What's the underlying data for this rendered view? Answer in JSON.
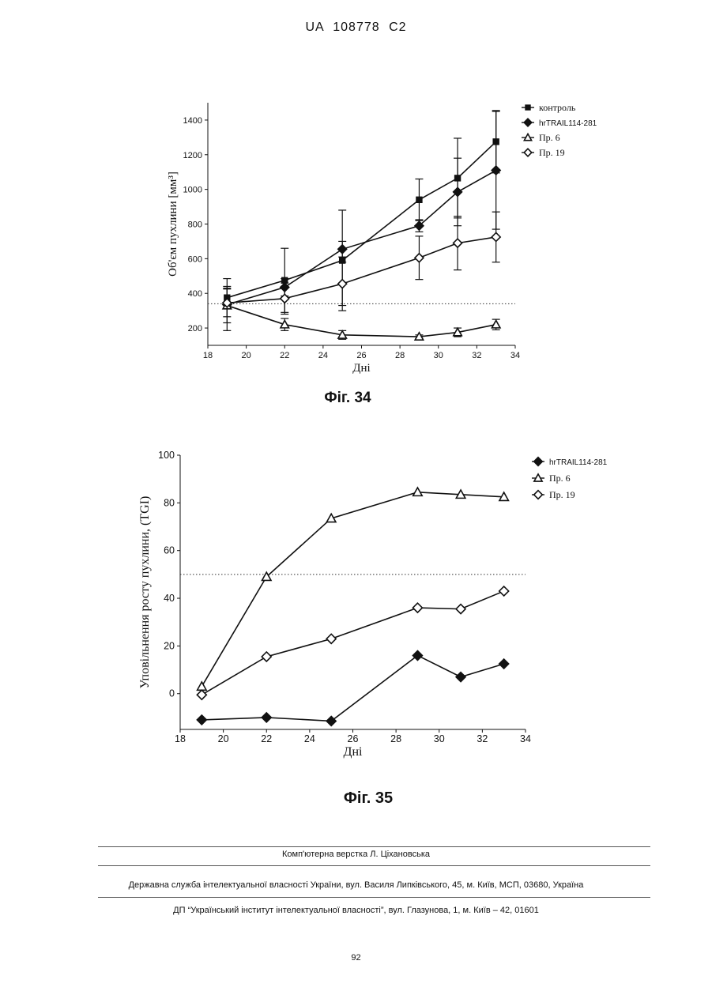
{
  "header": {
    "patent_number": "UA   108778   C2"
  },
  "figures": [
    {
      "caption": "Фіг. 34"
    },
    {
      "caption": "Фіг. 35"
    }
  ],
  "chart_data": [
    {
      "type": "line",
      "xlabel": "Дні",
      "ylabel": "Об'єм пухлини [мм³]",
      "xlim": [
        18,
        34
      ],
      "ylim": [
        100,
        1500
      ],
      "xticks": [
        "18",
        "20",
        "22",
        "24",
        "26",
        "28",
        "30",
        "32",
        "34"
      ],
      "yticks": [
        "200",
        "400",
        "600",
        "800",
        "1000",
        "1200",
        "1400"
      ],
      "reference_line": 340,
      "legend_position": "right",
      "series": [
        {
          "name": "контроль",
          "marker": "square-filled",
          "color": "#111111",
          "x": [
            19,
            22,
            25,
            29,
            31,
            33
          ],
          "y": [
            375,
            475,
            590,
            940,
            1065,
            1275
          ],
          "err": [
            65,
            185,
            290,
            120,
            230,
            180
          ]
        },
        {
          "name": "hrTRAIL114-281",
          "marker": "diamond-filled",
          "color": "#111111",
          "x": [
            19,
            22,
            25,
            29,
            31,
            33
          ],
          "y": [
            335,
            435,
            655,
            790,
            985,
            1110
          ],
          "err": [
            150,
            50,
            45,
            35,
            195,
            340
          ]
        },
        {
          "name": "Пр. 6",
          "marker": "triangle-open",
          "color": "#111111",
          "x": [
            19,
            22,
            25,
            29,
            31,
            33
          ],
          "y": [
            330,
            220,
            160,
            150,
            175,
            220
          ],
          "err": [
            100,
            35,
            25,
            10,
            25,
            30
          ]
        },
        {
          "name": "Пр. 19",
          "marker": "diamond-open",
          "color": "#111111",
          "x": [
            19,
            22,
            25,
            29,
            31,
            33
          ],
          "y": [
            345,
            370,
            455,
            605,
            690,
            725
          ],
          "err": [
            80,
            90,
            125,
            125,
            155,
            145
          ]
        }
      ]
    },
    {
      "type": "line",
      "xlabel": "Дні",
      "ylabel": "Уповільнення росту пухлини, (TGI)",
      "xlim": [
        18,
        34
      ],
      "ylim": [
        -15,
        100
      ],
      "xticks": [
        "18",
        "20",
        "22",
        "24",
        "26",
        "28",
        "30",
        "32",
        "34"
      ],
      "yticks": [
        "0",
        "20",
        "40",
        "60",
        "80",
        "100"
      ],
      "reference_line": 50,
      "legend_position": "right",
      "series": [
        {
          "name": "hrTRAIL114-281",
          "marker": "diamond-filled",
          "color": "#111111",
          "x": [
            19,
            22,
            25,
            29,
            31,
            33
          ],
          "y": [
            -11,
            -10,
            -11.5,
            16,
            7,
            12.5
          ]
        },
        {
          "name": "Пр. 6",
          "marker": "triangle-open",
          "color": "#111111",
          "x": [
            19,
            22,
            25,
            29,
            31,
            33
          ],
          "y": [
            3,
            49,
            73.5,
            84.5,
            83.5,
            82.5
          ]
        },
        {
          "name": "Пр. 19",
          "marker": "diamond-open",
          "color": "#111111",
          "x": [
            19,
            22,
            25,
            29,
            31,
            33
          ],
          "y": [
            -0.5,
            15.5,
            23,
            36,
            35.5,
            43
          ]
        }
      ]
    }
  ],
  "footer": {
    "typesetting": "Комп'ютерна верстка Л. Ціхановська",
    "agency": "Державна служба інтелектуальної власності України, вул. Василя Липківського, 45, м. Київ, МСП, 03680, Україна",
    "institute": "ДП “Український інститут інтелектуальної власності”, вул. Глазунова, 1, м. Київ – 42, 01601",
    "page_number": "92"
  }
}
